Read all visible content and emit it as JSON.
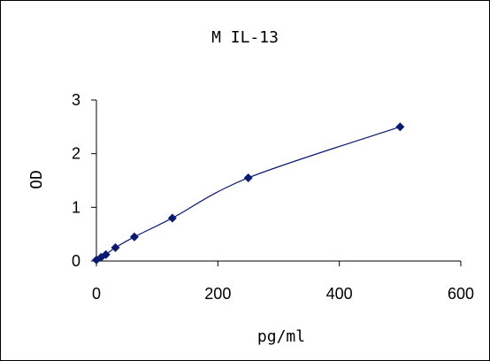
{
  "chart_data": {
    "type": "scatter",
    "title": "M IL-13",
    "xlabel": "pg/ml",
    "ylabel": "OD",
    "xlim": [
      0,
      600
    ],
    "ylim": [
      0,
      3
    ],
    "x_ticks": [
      "0",
      "200",
      "400",
      "600"
    ],
    "y_ticks": [
      "0",
      "1",
      "2",
      "3"
    ],
    "grid": false,
    "legend": "none",
    "series": [
      {
        "marker_color": "#0a1a6e",
        "line_color": "#0a1a6e",
        "x": [
          0,
          7.8,
          15.6,
          31.3,
          62.5,
          125,
          250,
          500
        ],
        "y": [
          0.02,
          0.07,
          0.12,
          0.25,
          0.45,
          0.8,
          1.55,
          2.5
        ]
      }
    ]
  }
}
